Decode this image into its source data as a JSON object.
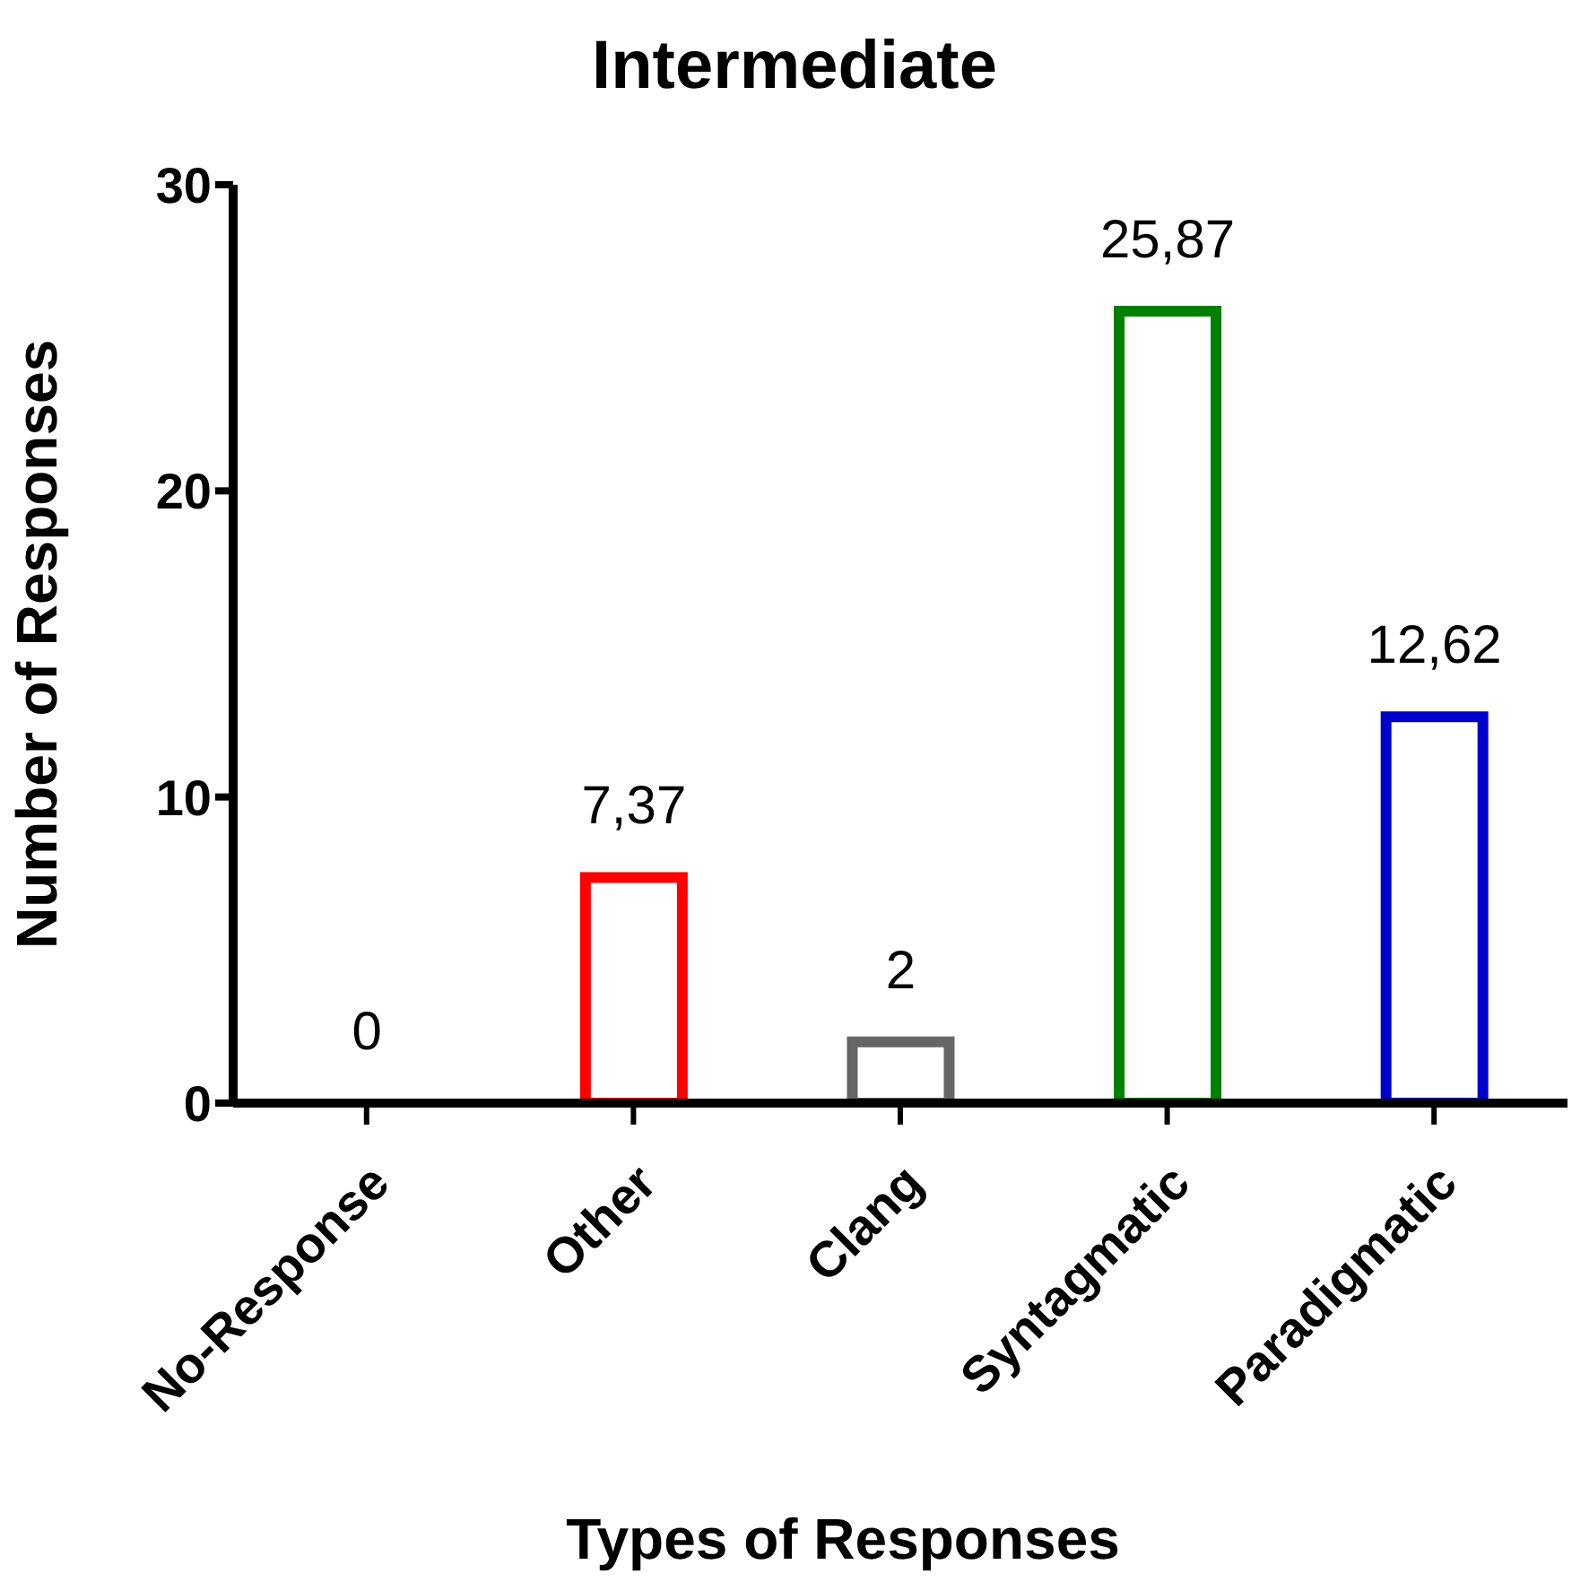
{
  "chart_data": {
    "type": "bar",
    "title": "Intermediate",
    "xlabel": "Types of Responses",
    "ylabel": "Number of Responses",
    "categories": [
      "No-Response",
      "Other",
      "Clang",
      "Syntagmatic",
      "Paradigmatic"
    ],
    "values": [
      0,
      7.37,
      2,
      25.87,
      12.62
    ],
    "colors": [
      "#000000",
      "#ff0000",
      "#666666",
      "#008000",
      "#0000cc"
    ],
    "value_labels": [
      "0",
      "7,37",
      "2",
      "25,87",
      "12,62"
    ],
    "ylim": [
      0,
      30
    ],
    "yticks": [
      0,
      10,
      20,
      30
    ],
    "grid": false,
    "legend": false
  }
}
